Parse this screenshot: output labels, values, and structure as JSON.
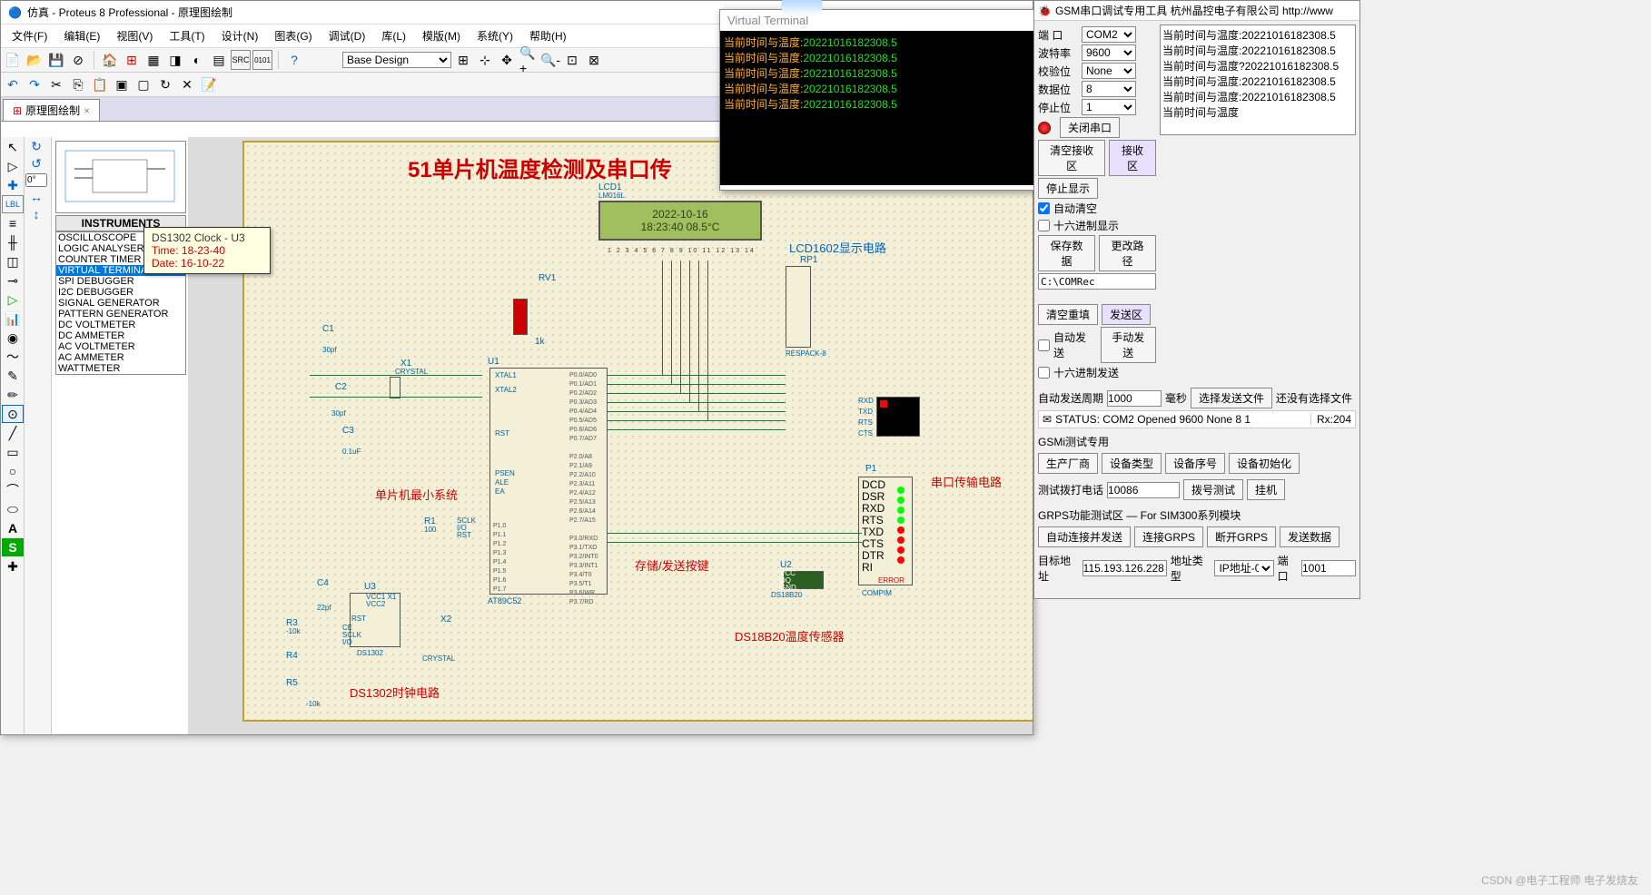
{
  "app": {
    "title": "仿真 - Proteus 8 Professional - 原理图绘制",
    "tab": "原理图绘制"
  },
  "menu": [
    "文件(F)",
    "编辑(E)",
    "视图(V)",
    "工具(T)",
    "设计(N)",
    "图表(G)",
    "调试(D)",
    "库(L)",
    "模版(M)",
    "系统(Y)",
    "帮助(H)"
  ],
  "design_selector": "Base Design",
  "angle_box": "0°",
  "instruments": {
    "header": "INSTRUMENTS",
    "items": [
      "OSCILLOSCOPE",
      "LOGIC ANALYSER",
      "COUNTER TIMER",
      "VIRTUAL TERMINAL",
      "SPI DEBUGGER",
      "I2C DEBUGGER",
      "SIGNAL GENERATOR",
      "PATTERN GENERATOR",
      "DC VOLTMETER",
      "DC AMMETER",
      "AC VOLTMETER",
      "AC AMMETER",
      "WATTMETER"
    ],
    "selected": 3
  },
  "tooltip": {
    "head": "DS1302 Clock - U3",
    "line1": "Time: 18-23-40",
    "line2": "Date: 16-10-22"
  },
  "schematic": {
    "title": "51单片机温度检测及串口传",
    "lcd": {
      "ref": "LCD1",
      "part": "LM016L",
      "line1": "2022-10-16",
      "line2": "18:23:40  08.5°C"
    },
    "labels": {
      "lcd_circuit": "LCD1602显示电路",
      "rp1": "RP1",
      "rv1": "RV1",
      "u1": "U1",
      "c1": "C1",
      "c2": "C2",
      "c3": "C3",
      "c4": "C4",
      "x1": "X1",
      "x2": "X2",
      "u3": "U3",
      "r1": "R1",
      "r3": "R3",
      "r4": "R4",
      "r5": "R5",
      "u2": "U2",
      "p1": "P1",
      "mcu_min": "单片机最小系统",
      "key": "存储/发送按键",
      "serial": "串口传输电路",
      "ds18b20": "DS18B20温度传感器",
      "ds1302": "DS1302时钟电路",
      "crystal": "CRYSTAL",
      "at89": "AT89C52",
      "respack": "RESPACK-8",
      "compim": "COMPIM",
      "error": "ERROR",
      "ds18": "DS18B20",
      "ds13": "DS1302",
      "c1v": "30pf",
      "c2v": "30pf",
      "c3v": "0.1uF",
      "c4v": "22pf",
      "r_1k": "1k",
      "r1v": "100",
      "r_10k": "-10k",
      "vcc1": "VCC1 X1",
      "vcc2": "VCC2",
      "pins_rxd": "RXD",
      "pins_txd": "TXD",
      "pins_rts": "RTS",
      "pins_cts": "CTS",
      "pins_dcd": "DCD",
      "pins_dsr": "DSR",
      "pins_dtr": "DTR",
      "pins_ri": "RI",
      "vcc": "VCC",
      "dq": "DQ",
      "gnd": "GND",
      "rst": "RST",
      "ce": "CE",
      "sclk": "SCLK",
      "io": "I/O",
      "xtal1": "XTAL1",
      "xtal2": "XTAL2",
      "psen": "PSEN",
      "ale": "ALE",
      "ea": "EA"
    }
  },
  "vterm": {
    "title": "Virtual Terminal",
    "label": "当前时间与温度:",
    "lines": [
      "20221016182308.5",
      "20221016182308.5",
      "20221016182308.5",
      "20221016182308.5",
      "20221016182308.5"
    ]
  },
  "gsm": {
    "title": "GSM串口调试专用工具 杭州晶控电子有限公司  http://www",
    "port_lbl": "端  口",
    "port": "COM2",
    "baud_lbl": "波特率",
    "baud": "9600",
    "parity_lbl": "校验位",
    "parity": "None",
    "data_lbl": "数据位",
    "data": "8",
    "stop_lbl": "停止位",
    "stop": "1",
    "close_btn": "关闭串口",
    "clear_rx": "清空接收区",
    "rx_area": "接收区",
    "stop_disp": "停止显示",
    "auto_clear": "自动清空",
    "hex_disp": "十六进制显示",
    "save_data": "保存数据",
    "change_path": "更改路径",
    "path": "C:\\COMRec",
    "clear_tx": "清空重填",
    "tx_area": "发送区",
    "auto_send": "自动发送",
    "manual_send": "手动发送",
    "hex_send": "十六进制发送",
    "auto_period_lbl": "自动发送周期",
    "auto_period": "1000",
    "ms": "毫秒",
    "sel_file": "选择发送文件",
    "no_file": "还没有选择文件",
    "status": "STATUS: COM2 Opened 9600 None 8 1",
    "rx_count": "Rx:204",
    "gsmi": "GSMi测试专用",
    "vendor": "生产厂商",
    "devtype": "设备类型",
    "devsn": "设备序号",
    "devinit": "设备初始化",
    "dial_lbl": "测试拨打电话",
    "dial": "10086",
    "dial_test": "拨号测试",
    "hangup": "挂机",
    "gprs_title": "GRPS功能测试区 — For SIM300系列模块",
    "auto_conn": "自动连接并发送",
    "conn_gprs": "连接GRPS",
    "disc_gprs": "断开GRPS",
    "send_data": "发送数据",
    "target_lbl": "目标地址",
    "target": "115.193.126.228",
    "addr_type_lbl": "地址类型",
    "addr_type": "IP地址-0",
    "port2_lbl": "端口",
    "port2": "1001",
    "rx_text": [
      "当前时间与温度:20221016182308.5",
      "当前时间与温度:20221016182308.5",
      "当前时间与温度?20221016182308.5",
      "当前时间与温度:20221016182308.5",
      "当前时间与温度:20221016182308.5",
      "当前时间与温度"
    ]
  },
  "watermark": "CSDN @电子工程师  电子发烧友"
}
